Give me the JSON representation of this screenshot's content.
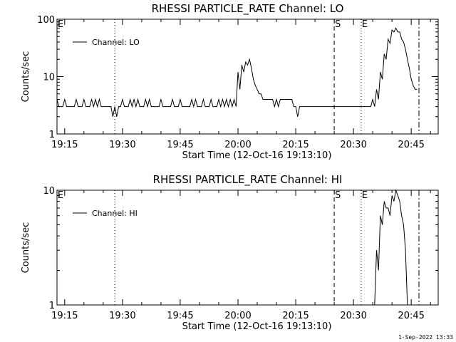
{
  "footer": {
    "timestamp": "1-Sep-2022 13:33"
  },
  "chart_data": [
    {
      "type": "line",
      "title": "RHESSI PARTICLE_RATE Channel: LO",
      "xlabel": "Start Time (12-Oct-16 19:13:10)",
      "ylabel": "Counts/sec",
      "yscale": "log",
      "ylim": [
        1,
        100
      ],
      "xlim_minutes": [
        "19:13",
        "20:52"
      ],
      "x_tick_labels": [
        "19:15",
        "19:30",
        "19:45",
        "20:00",
        "20:15",
        "20:30",
        "20:45"
      ],
      "y_tick_labels": [
        "1",
        "10",
        "100"
      ],
      "grid": false,
      "legend": {
        "position": "top-left",
        "entries": [
          "Channel: LO"
        ]
      },
      "markers": [
        {
          "time": "19:13",
          "label": "E",
          "style": "solid"
        },
        {
          "time": "19:28",
          "label": "",
          "style": "dotted"
        },
        {
          "time": "20:25",
          "label": "S",
          "style": "dashed"
        },
        {
          "time": "20:32",
          "label": "E",
          "style": "dotted"
        },
        {
          "time": "20:47",
          "label": "",
          "style": "dashdot"
        }
      ],
      "series": [
        {
          "name": "Channel: LO",
          "color": "#000000",
          "x": [
            "19:13",
            "19:14",
            "19:15",
            "19:16",
            "19:17",
            "19:18",
            "19:19",
            "19:20",
            "19:21",
            "19:22",
            "19:23",
            "19:24",
            "19:25",
            "19:26",
            "19:27",
            "19:28",
            "19:29",
            "19:30",
            "19:31",
            "19:32",
            "19:33",
            "19:34",
            "19:35",
            "19:36",
            "19:37",
            "19:38",
            "19:39",
            "19:40",
            "19:41",
            "19:42",
            "19:43",
            "19:44",
            "19:45",
            "19:46",
            "19:47",
            "19:48",
            "19:49",
            "19:50",
            "19:51",
            "19:52",
            "19:53",
            "19:54",
            "19:55",
            "19:56",
            "19:57",
            "19:58",
            "19:59",
            "20:00",
            "20:01",
            "20:02",
            "20:03",
            "20:04",
            "20:05",
            "20:06",
            "20:07",
            "20:08",
            "20:09",
            "20:10",
            "20:11",
            "20:12",
            "20:13",
            "20:14",
            "20:15",
            "20:16",
            "20:17",
            "20:18",
            "20:19",
            "20:20",
            "20:21",
            "20:22",
            "20:23",
            "20:24",
            "20:25",
            "20:26",
            "20:27",
            "20:28",
            "20:29",
            "20:30",
            "20:31",
            "20:32",
            "20:33",
            "20:34",
            "20:35",
            "20:36",
            "20:37",
            "20:38",
            "20:39",
            "20:40",
            "20:41",
            "20:42",
            "20:43",
            "20:44",
            "20:45",
            "20:46"
          ],
          "values": [
            4,
            3,
            4,
            3,
            3,
            4,
            3,
            4,
            3,
            4,
            4,
            4,
            3,
            3,
            3,
            3,
            3,
            4,
            3,
            4,
            4,
            4,
            3,
            4,
            4,
            3,
            3,
            4,
            3,
            3,
            4,
            3,
            4,
            3,
            3,
            4,
            4,
            3,
            4,
            3,
            4,
            3,
            4,
            4,
            4,
            4,
            4,
            12,
            16,
            18,
            20,
            9,
            6,
            5,
            4,
            4,
            4,
            4,
            4,
            4,
            4,
            4,
            3,
            3,
            3,
            3,
            3,
            3,
            3,
            3,
            3,
            3,
            3,
            3,
            3,
            3,
            3,
            3,
            3,
            3,
            3,
            3,
            4,
            6,
            12,
            25,
            45,
            65,
            70,
            60,
            40,
            20,
            9,
            6
          ],
          "min_values": [
            3,
            3,
            3,
            3,
            3,
            3,
            3,
            3,
            3,
            3,
            3,
            3,
            3,
            3,
            2,
            2,
            3,
            3,
            3,
            3,
            3,
            3,
            3,
            3,
            3,
            3,
            3,
            3,
            3,
            3,
            3,
            3,
            3,
            3,
            3,
            3,
            3,
            3,
            3,
            3,
            3,
            3,
            3,
            3,
            3,
            3,
            3,
            6,
            12,
            16,
            14,
            7,
            5,
            4,
            4,
            4,
            3,
            3,
            4,
            4,
            4,
            3,
            2,
            3,
            3,
            3,
            3,
            3,
            3,
            3,
            3,
            3,
            3,
            3,
            3,
            3,
            3,
            3,
            3,
            3,
            3,
            3,
            3,
            4,
            9,
            20,
            38,
            60,
            60,
            45,
            30,
            14,
            7,
            6
          ]
        }
      ]
    },
    {
      "type": "line",
      "title": "RHESSI PARTICLE_RATE Channel: HI",
      "xlabel": "Start Time (12-Oct-16 19:13:10)",
      "ylabel": "Counts/sec",
      "yscale": "log",
      "ylim": [
        1,
        10
      ],
      "xlim_minutes": [
        "19:13",
        "20:52"
      ],
      "x_tick_labels": [
        "19:15",
        "19:30",
        "19:45",
        "20:00",
        "20:15",
        "20:30",
        "20:45"
      ],
      "y_tick_labels": [
        "1",
        "10"
      ],
      "grid": false,
      "legend": {
        "position": "top-left",
        "entries": [
          "Channel: HI"
        ]
      },
      "markers": [
        {
          "time": "19:13",
          "label": "E",
          "style": "solid"
        },
        {
          "time": "19:28",
          "label": "",
          "style": "dotted"
        },
        {
          "time": "20:25",
          "label": "S",
          "style": "dashed"
        },
        {
          "time": "20:32",
          "label": "E",
          "style": "dotted"
        },
        {
          "time": "20:47",
          "label": "",
          "style": "dashdot"
        }
      ],
      "series": [
        {
          "name": "Channel: HI",
          "color": "#000000",
          "x": [
            "20:35",
            "20:36",
            "20:37",
            "20:38",
            "20:39",
            "20:40",
            "20:41",
            "20:42",
            "20:43",
            "20:44"
          ],
          "values": [
            1,
            3,
            6,
            8,
            7,
            9,
            10,
            8,
            5,
            1
          ],
          "min_values": [
            1,
            2,
            5,
            7,
            6,
            8,
            9,
            6,
            3,
            1
          ]
        }
      ]
    }
  ]
}
